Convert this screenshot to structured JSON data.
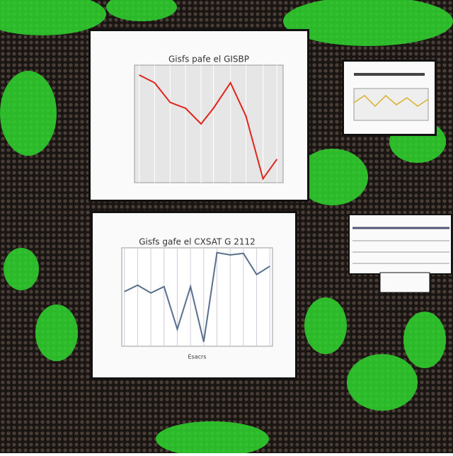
{
  "chart_data": [
    {
      "type": "line",
      "title": "Gisfs pafe el GISBP",
      "color": "#e0241c",
      "x": [
        0,
        1,
        2,
        3,
        4,
        4.8,
        5.9,
        6.9,
        8,
        8.9
      ],
      "values": [
        5.0,
        4.6,
        3.6,
        3.3,
        2.5,
        3.3,
        4.6,
        2.9,
        -0.3,
        0.7
      ],
      "xlim": [
        -0.3,
        9.3
      ],
      "ylim": [
        -0.5,
        5.5
      ],
      "grid": true
    },
    {
      "type": "line",
      "title": "Gisfs gafe el CXSAT G 2112",
      "xlabel": "Esacrs",
      "color": "#5a6f8c",
      "x": [
        0,
        1,
        2,
        3,
        4,
        5,
        6,
        7,
        8,
        9,
        10,
        11
      ],
      "values": [
        2.94,
        3.29,
        2.87,
        3.21,
        0.92,
        3.21,
        0.24,
        5.04,
        4.92,
        5.0,
        3.86,
        4.31
      ],
      "xlim": [
        -0.2,
        11.2
      ],
      "ylim": [
        0,
        5.3
      ],
      "grid": true
    }
  ]
}
